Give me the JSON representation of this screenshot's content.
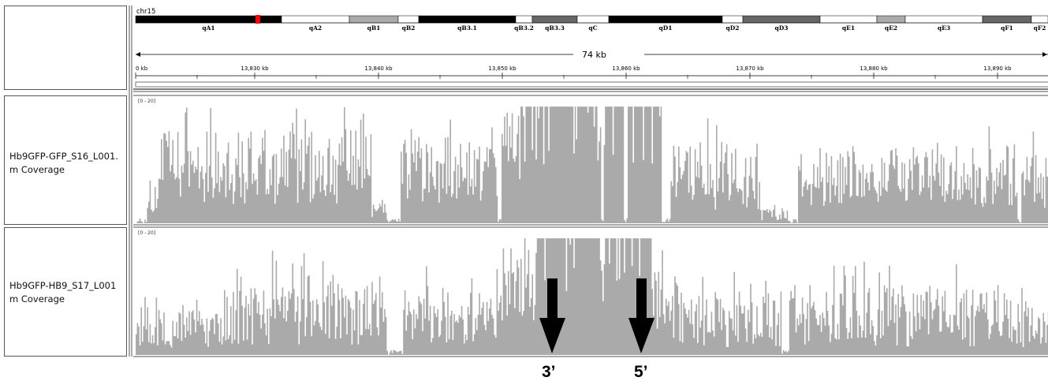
{
  "genome": {
    "chromosome": "chr15",
    "span_label": "74 kb",
    "bands": [
      {
        "name": "qA1",
        "stain": "black"
      },
      {
        "name": "qA2",
        "stain": "white"
      },
      {
        "name": "qB1",
        "stain": "gray"
      },
      {
        "name": "qB2",
        "stain": "white"
      },
      {
        "name": "qB3.1",
        "stain": "black"
      },
      {
        "name": "qB3.2",
        "stain": "white"
      },
      {
        "name": "qB3.3",
        "stain": "darkgray"
      },
      {
        "name": "qC",
        "stain": "white"
      },
      {
        "name": "qD1",
        "stain": "black"
      },
      {
        "name": "qD2",
        "stain": "white"
      },
      {
        "name": "qD3",
        "stain": "darkgray"
      },
      {
        "name": "qE1",
        "stain": "white"
      },
      {
        "name": "qE2",
        "stain": "gray"
      },
      {
        "name": "qE3",
        "stain": "white"
      },
      {
        "name": "qF1",
        "stain": "darkgray"
      },
      {
        "name": "qF2",
        "stain": "white"
      }
    ],
    "ruler_ticks": [
      "0 kb",
      "13,830 kb",
      "13,840 kb",
      "13,850 kb",
      "13,860 kb",
      "13,870 kb",
      "13,880 kb",
      "13,890 kb"
    ]
  },
  "tracks": [
    {
      "name_line1": "Hb9GFP-GFP_S16_L001.",
      "name_line2": "m Coverage",
      "range": "[0 - 20]"
    },
    {
      "name_line1": "Hb9GFP-HB9_S17_L001",
      "name_line2": "m Coverage",
      "range": "[0 - 20]"
    }
  ],
  "annotations": [
    {
      "label": "3’"
    },
    {
      "label": "5’"
    }
  ],
  "colors": {
    "coverage": "#aaaaaa",
    "band_black": "#000000",
    "band_darkgray": "#666666",
    "band_gray": "#aaaaaa",
    "band_white": "#ffffff",
    "current_region": "#ff0000",
    "arrow": "#000000"
  }
}
